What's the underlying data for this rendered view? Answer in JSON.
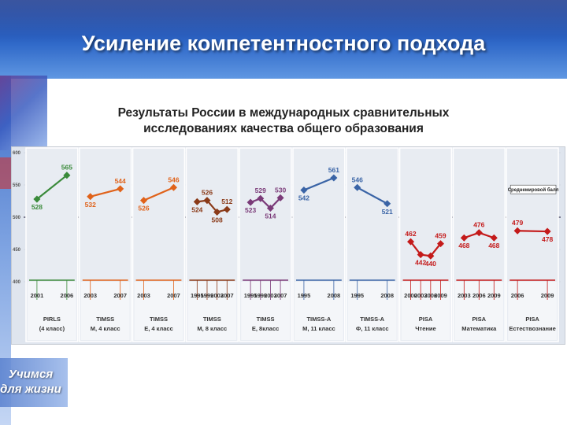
{
  "slide": {
    "title": "Усиление компетентностного подхода",
    "subtitle_line1": "Результаты России в международных сравнительных",
    "subtitle_line2": "исследованиях качества общего образования",
    "motto_line1": "Учимся",
    "motto_line2": "для жизни"
  },
  "colors": {
    "header_blue": "#2f68c8",
    "green": "#3a8a3a",
    "orange": "#e0621a",
    "brown": "#8a3a18",
    "purple": "#7a3a78",
    "blue": "#3a64a6",
    "red": "#c41a1a",
    "olive": "#6c6a1c"
  },
  "chart_data": {
    "type": "line",
    "yticks": [
      "600",
      "550",
      "500",
      "450",
      "400"
    ],
    "ylim": [
      400,
      600
    ],
    "international_average_label": "Среднемировой балл",
    "international_average": 500,
    "groups": [
      {
        "name_line1": "PIRLS",
        "name_line2": "(4 класс)",
        "color": "#3a8a3a",
        "years": [
          "2001",
          "2006"
        ],
        "values": [
          528,
          565
        ],
        "labels": [
          "528",
          "565"
        ]
      },
      {
        "name_line1": "TIMSS",
        "name_line2": "М, 4 класс",
        "color": "#e0621a",
        "years": [
          "2003",
          "2007"
        ],
        "values": [
          532,
          544
        ],
        "labels": [
          "532",
          "544"
        ]
      },
      {
        "name_line1": "TIMSS",
        "name_line2": "Е, 4 класс",
        "color": "#e0621a",
        "years": [
          "2003",
          "2007"
        ],
        "values": [
          526,
          546
        ],
        "labels": [
          "526",
          "546"
        ]
      },
      {
        "name_line1": "TIMSS",
        "name_line2": "М, 8 класс",
        "color": "#8a3a18",
        "years": [
          "1995",
          "1999",
          "2003",
          "2007"
        ],
        "values": [
          524,
          526,
          508,
          512
        ],
        "labels": [
          "524",
          "526",
          "508",
          "512"
        ]
      },
      {
        "name_line1": "TIMSS",
        "name_line2": "Е, 8класс",
        "color": "#7a3a78",
        "years": [
          "1995",
          "1999",
          "2003",
          "2007"
        ],
        "values": [
          523,
          529,
          514,
          530
        ],
        "labels": [
          "523",
          "529",
          "514",
          "530"
        ]
      },
      {
        "name_line1": "TIMSS-A",
        "name_line2": "М, 11 класс",
        "color": "#3a64a6",
        "years": [
          "1995",
          "2008"
        ],
        "values": [
          542,
          561
        ],
        "labels": [
          "542",
          "561"
        ]
      },
      {
        "name_line1": "TIMSS-A",
        "name_line2": "Ф, 11 класс",
        "color": "#3a64a6",
        "years": [
          "1995",
          "2008"
        ],
        "values": [
          546,
          521
        ],
        "labels": [
          "546",
          "521"
        ]
      },
      {
        "name_line1": "PISA",
        "name_line2": "Чтение",
        "color": "#c41a1a",
        "years": [
          "2000",
          "2003",
          "2006",
          "2009"
        ],
        "values": [
          462,
          442,
          440,
          459
        ],
        "labels": [
          "462",
          "442",
          "440",
          "459"
        ]
      },
      {
        "name_line1": "PISA",
        "name_line2": "Математика",
        "color": "#c41a1a",
        "years": [
          "2003",
          "2006",
          "2009"
        ],
        "values": [
          468,
          476,
          468
        ],
        "labels": [
          "468",
          "476",
          "468"
        ]
      },
      {
        "name_line1": "PISA",
        "name_line2": "Естествознание",
        "color": "#c41a1a",
        "years": [
          "2006",
          "2009"
        ],
        "values": [
          479,
          478
        ],
        "labels": [
          "479",
          "478"
        ]
      }
    ]
  }
}
